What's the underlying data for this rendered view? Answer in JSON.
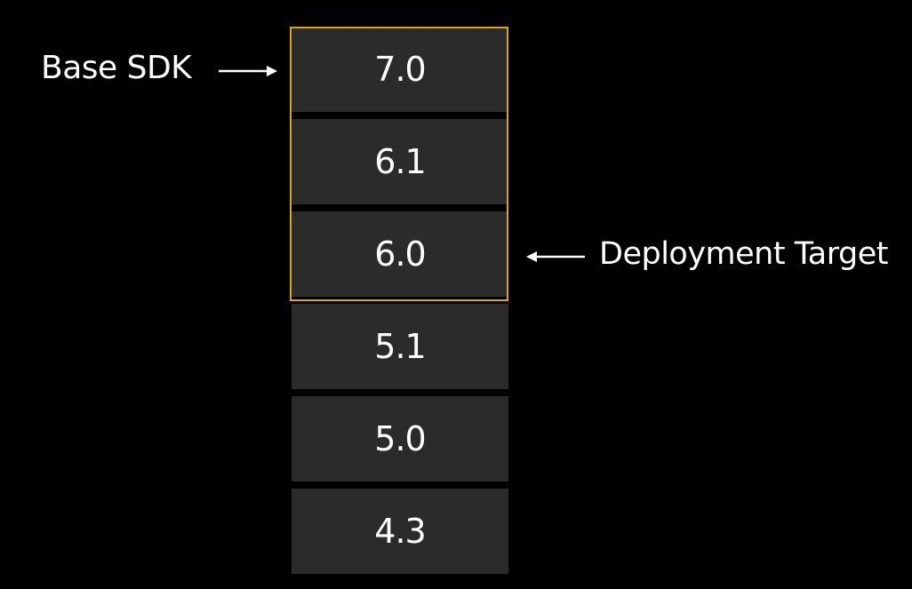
{
  "labels": {
    "base_sdk": "Base SDK",
    "deployment_target": "Deployment Target"
  },
  "versions": [
    "7.0",
    "6.1",
    "6.0",
    "5.1",
    "5.0",
    "4.3"
  ],
  "colors": {
    "background": "#000000",
    "block": "#2b2b2b",
    "highlight": "#d9a520",
    "text": "#ffffff"
  }
}
